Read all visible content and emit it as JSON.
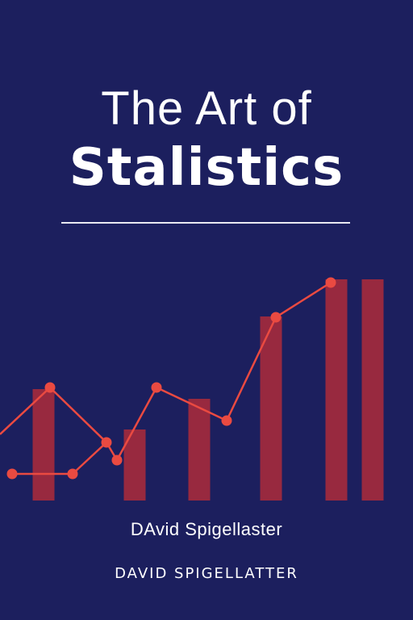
{
  "cover": {
    "title_line1": "The Art of",
    "title_line2": "Stalistics",
    "author_line1": "DAvid Spigellaster",
    "author_line2": "DAVID SPIGELLATTER"
  },
  "colors": {
    "background": "#1c1f5e",
    "bar": "#98293f",
    "line": "#ea4a41",
    "text": "#ffffff"
  },
  "icons": [
    "bar-chart-graphic",
    "line-graph-graphic"
  ],
  "chart_data": {
    "type": "bar",
    "note_type": "decorative bar chart with overlaid line graph",
    "bars": [
      {
        "x": 54,
        "value": 138
      },
      {
        "x": 167,
        "value": 88
      },
      {
        "x": 247,
        "value": 126
      },
      {
        "x": 336,
        "value": 228
      },
      {
        "x": 417,
        "value": 274
      },
      {
        "x": 462,
        "value": 274
      }
    ],
    "line_points": [
      {
        "x": 0,
        "y": 82
      },
      {
        "x": 62,
        "y": 140
      },
      {
        "x": 132,
        "y": 72
      },
      {
        "x": 145,
        "y": 50
      },
      {
        "x": 194,
        "y": 140
      },
      {
        "x": 281,
        "y": 99
      },
      {
        "x": 342,
        "y": 227
      },
      {
        "x": 410,
        "y": 270
      }
    ],
    "base_line_points": [
      {
        "x": 15,
        "y": 33
      },
      {
        "x": 90,
        "y": 33
      },
      {
        "x": 132,
        "y": 72
      }
    ],
    "y_range": [
      0,
      300
    ],
    "x_range": [
      0,
      512
    ]
  }
}
